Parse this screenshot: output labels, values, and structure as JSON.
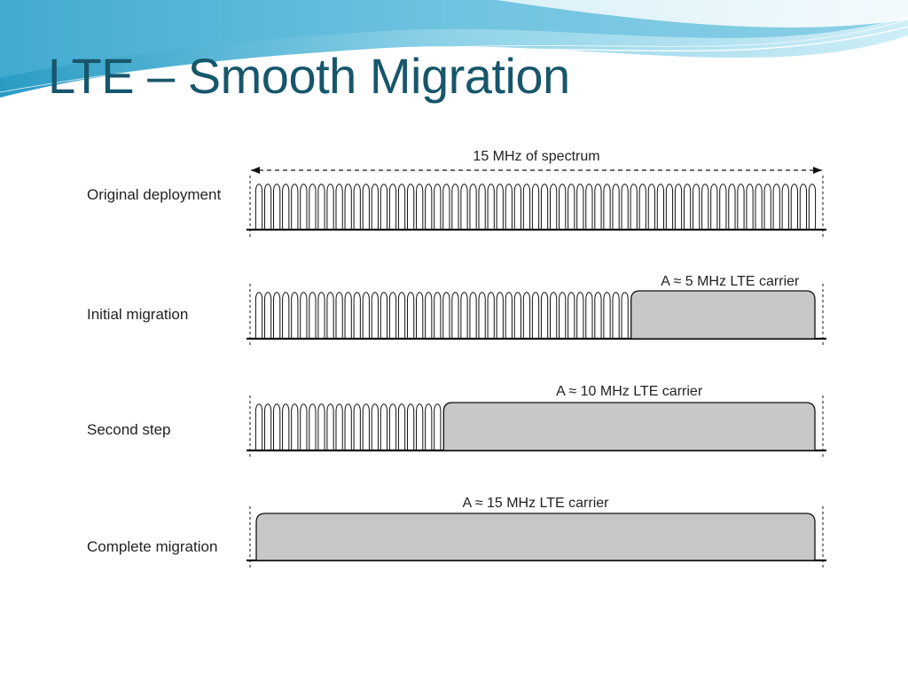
{
  "slide": {
    "title": "LTE – Smooth Migration"
  },
  "diagram": {
    "spectrum_label": "15 MHz of spectrum",
    "total_bandwidth_mhz": 15,
    "narrowband_carrier_count": 63,
    "rows": [
      {
        "label": "Original deployment",
        "lte_carrier_mhz": 0,
        "lte_label": ""
      },
      {
        "label": "Initial migration",
        "lte_carrier_mhz": 5,
        "lte_label": "A ≈ 5 MHz LTE carrier"
      },
      {
        "label": "Second step",
        "lte_carrier_mhz": 10,
        "lte_label": "A ≈ 10 MHz LTE carrier"
      },
      {
        "label": "Complete migration",
        "lte_carrier_mhz": 15,
        "lte_label": "A ≈ 15 MHz LTE carrier"
      }
    ]
  },
  "colors": {
    "title": "#17566b",
    "lte_fill": "#c8c8c8",
    "line": "#111111",
    "wave_light": "#bfe6f2",
    "wave_mid": "#6fc3de",
    "wave_dark": "#1f8fb8"
  }
}
